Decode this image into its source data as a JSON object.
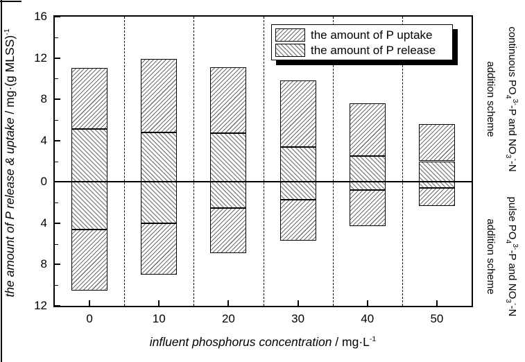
{
  "figure": {
    "background": "#ffffff",
    "ink_color": "#000000",
    "hatch_color": "#3c3c3c"
  },
  "chart_data": {
    "type": "bar",
    "title": "",
    "xlabel_parts": {
      "italic": "influent phosphorus concentration",
      "unit": " / mg·L",
      "sup": "-1"
    },
    "ylabel_parts": {
      "italic": "the amount of P release & uptake",
      "unit": " / mg·(g MLSS)",
      "sup": "-1"
    },
    "legend": [
      {
        "label": "the amount of P uptake",
        "hatch": "forward-diagonal"
      },
      {
        "label": "the amount of P release",
        "hatch": "backward-diagonal"
      }
    ],
    "x_axis": {
      "range": [
        -5,
        55
      ],
      "tick_values": [
        0,
        10,
        20,
        30,
        40,
        50
      ],
      "tick_labels": [
        "0",
        "10",
        "20",
        "30",
        "40",
        "50"
      ],
      "separators": [
        5,
        15,
        25,
        35,
        45
      ]
    },
    "y_axis": {
      "range": [
        -12,
        16
      ],
      "major_tick_values": [
        16,
        12,
        8,
        4,
        0,
        -4,
        -8,
        -12
      ],
      "major_tick_labels": [
        "16",
        "12",
        "8",
        "4",
        "0",
        "4",
        "8",
        "12"
      ],
      "minor_tick_values": [
        14,
        10,
        6,
        2,
        -2,
        -6,
        -10
      ]
    },
    "bar_width_units": 5.2,
    "groups": [
      {
        "x": 0,
        "continuous": {
          "release": 5.1,
          "uptake": 5.9,
          "total": 11.0
        },
        "pulse": {
          "release": 4.6,
          "uptake": 5.9,
          "total": 10.5
        }
      },
      {
        "x": 10,
        "continuous": {
          "release": 4.8,
          "uptake": 7.1,
          "total": 11.9
        },
        "pulse": {
          "release": 4.0,
          "uptake": 5.0,
          "total": 9.0
        }
      },
      {
        "x": 20,
        "continuous": {
          "release": 4.7,
          "uptake": 6.4,
          "total": 11.1
        },
        "pulse": {
          "release": 2.5,
          "uptake": 4.4,
          "total": 6.9
        }
      },
      {
        "x": 30,
        "continuous": {
          "release": 3.4,
          "uptake": 6.4,
          "total": 9.8
        },
        "pulse": {
          "release": 1.7,
          "uptake": 4.0,
          "total": 5.7
        }
      },
      {
        "x": 40,
        "continuous": {
          "release": 2.5,
          "uptake": 5.1,
          "total": 7.6
        },
        "pulse": {
          "release": 0.8,
          "uptake": 3.5,
          "total": 4.3
        }
      },
      {
        "x": 50,
        "continuous": {
          "release": 2.0,
          "uptake": 3.6,
          "total": 5.6
        },
        "pulse": {
          "release": 0.6,
          "uptake": 1.7,
          "total": 2.3
        }
      }
    ],
    "annotations": {
      "right_top": {
        "line1": [
          [
            "t",
            "continuous PO"
          ],
          [
            "sub",
            "4"
          ],
          [
            "sup",
            "3-"
          ],
          [
            "t",
            "-P and NO"
          ],
          [
            "sub",
            "3"
          ],
          [
            "sup",
            "-"
          ],
          [
            "t",
            "-N"
          ]
        ],
        "line2": "addition scheme"
      },
      "right_bottom": {
        "line1": [
          [
            "t",
            "pulse PO"
          ],
          [
            "sub",
            "4"
          ],
          [
            "sup",
            "3-"
          ],
          [
            "t",
            "-P and NO"
          ],
          [
            "sub",
            "3"
          ],
          [
            "sup",
            "-"
          ],
          [
            "t",
            "-N"
          ]
        ],
        "line2": "addition scheme"
      }
    },
    "legend_position": "top-right-inside",
    "grid": "dashed-vertical-separators-only"
  }
}
